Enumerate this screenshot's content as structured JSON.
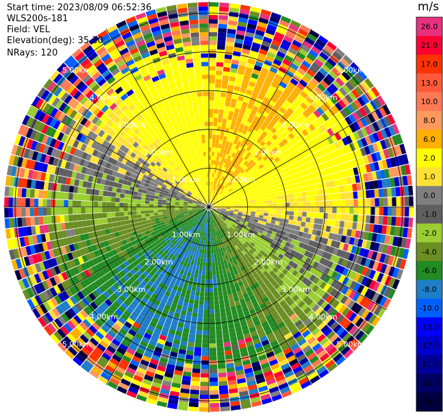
{
  "header": {
    "start_time": "Start time: 2023/08/09 06:52:36",
    "instrument": "WLS200s-181",
    "field": "Field: VEL",
    "elevation": "Elevation(deg): 35.30",
    "nrays": "NRays: 120"
  },
  "colorbar": {
    "unit": "m/s",
    "bins": [
      {
        "label": "26.0",
        "color": "#e8327f"
      },
      {
        "label": "21.0",
        "color": "#ff0033"
      },
      {
        "label": "17.0",
        "color": "#ff3300"
      },
      {
        "label": "13.0",
        "color": "#ff5a3a"
      },
      {
        "label": "10.0",
        "color": "#ff7a55"
      },
      {
        "label": "8.0",
        "color": "#ff9a5c"
      },
      {
        "label": "6.0",
        "color": "#ffb000"
      },
      {
        "label": "2.0",
        "color": "#ffff00"
      },
      {
        "label": "1.0",
        "color": "#ffe135"
      },
      {
        "label": "0.0",
        "color": "#7f7f7f"
      },
      {
        "label": "-1.0",
        "color": "#5f5f5f"
      },
      {
        "label": "-2.0",
        "color": "#9acd32"
      },
      {
        "label": "-4.0",
        "color": "#6b8e23"
      },
      {
        "label": "-6.0",
        "color": "#228b22"
      },
      {
        "label": "-8.0",
        "color": "#1e7ec8"
      },
      {
        "label": "-10.0",
        "color": "#0060ff"
      },
      {
        "label": "-13.0",
        "color": "#0000ff"
      },
      {
        "label": "-17.0",
        "color": "#0000cc"
      },
      {
        "label": "-21.0",
        "color": "#000099"
      },
      {
        "label": "-26.0",
        "color": "#000066"
      },
      {
        "label": "-30.0",
        "color": "#000040"
      }
    ]
  },
  "chart_data": {
    "type": "heatmap",
    "projection": "polar PPI scan",
    "field": "VEL",
    "units": "m/s",
    "rays": 120,
    "range_rings_km": [
      1.0,
      2.0,
      3.0,
      4.0,
      5.0
    ],
    "range_ring_labels": [
      "1.00km",
      "2.00km",
      "3.00km",
      "4.00km",
      "5.00km"
    ],
    "radial_spokes": 12,
    "velocity_regions": [
      {
        "sector": "north-northeast near field",
        "value_range": [
          1.0,
          6.0
        ],
        "note": "positive velocity (yellow/orange)"
      },
      {
        "sector": "south-southwest near field",
        "value_range": [
          -6.0,
          -2.0
        ],
        "note": "negative velocity (green)"
      },
      {
        "sector": "west / east transition",
        "value_range": [
          -1.0,
          0.0
        ],
        "note": "near-zero (grey)"
      },
      {
        "sector": "outer ring beyond ~4 km",
        "value_range": [
          -30.0,
          26.0
        ],
        "note": "noisy speckle"
      }
    ]
  }
}
